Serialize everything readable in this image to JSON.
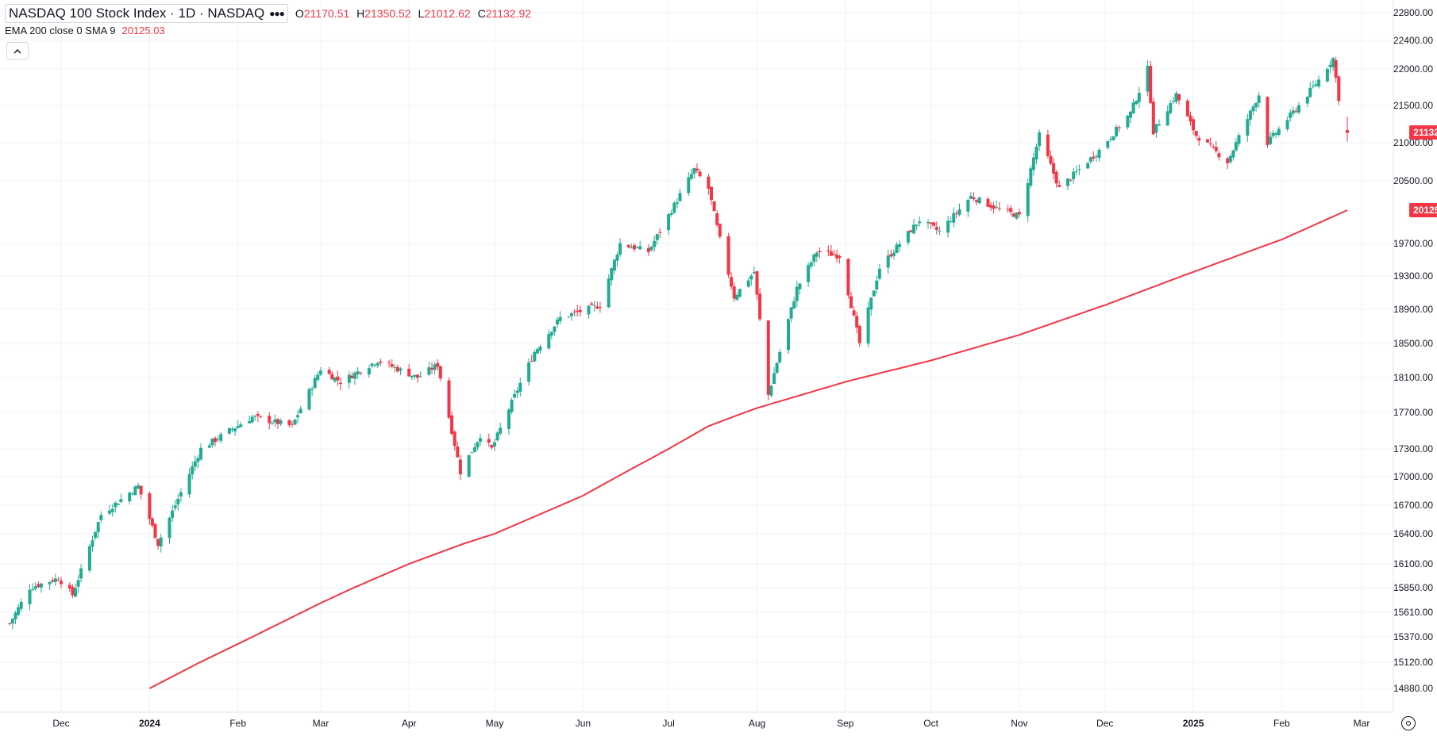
{
  "header": {
    "title": "NASDAQ 100 Stock Index · 1D · NASDAQ",
    "more_icon": "more-horizontal-icon",
    "ohlc": {
      "o_label": "O",
      "o_value": "21170.51",
      "h_label": "H",
      "h_value": "21350.52",
      "l_label": "L",
      "l_value": "21012.62",
      "c_label": "C",
      "c_value": "21132.92"
    },
    "indicator": {
      "name": "EMA 200 close 0 SMA 9",
      "value": "20125.03"
    },
    "collapse_icon": "chevron-up-icon"
  },
  "footer": {
    "settings_icon": "settings-icon"
  },
  "colors": {
    "up": "#22ab94",
    "down": "#f23645",
    "ema": "#f23645",
    "grid": "#f0f3fa",
    "axis_text": "#131722"
  },
  "chart_data": {
    "type": "candlestick",
    "symbol": "NASDAQ 100 Stock Index",
    "interval": "1D",
    "exchange": "NASDAQ",
    "price_axis_ticks": [
      22800,
      22400,
      22000,
      21500,
      21000,
      20500,
      19700,
      19300,
      18900,
      18500,
      18100,
      17700,
      17300,
      17000,
      16700,
      16400,
      16100,
      15850,
      15610,
      15370,
      15120,
      14880
    ],
    "price_axis_labels": [
      "22800.00",
      "22400.00",
      "22000.00",
      "21500.00",
      "21000.00",
      "20500.00",
      "19700.00",
      "19300.00",
      "18900.00",
      "18500.00",
      "18100.00",
      "17700.00",
      "17300.00",
      "17000.00",
      "16700.00",
      "16400.00",
      "16100.00",
      "15850.00",
      "15610.00",
      "15370.00",
      "15120.00",
      "14880.00"
    ],
    "time_axis": [
      {
        "date": "2023-12-01",
        "label": "Dec"
      },
      {
        "date": "2024-01-01",
        "label": "2024"
      },
      {
        "date": "2024-02-01",
        "label": "Feb"
      },
      {
        "date": "2024-03-01",
        "label": "Mar"
      },
      {
        "date": "2024-04-01",
        "label": "Apr"
      },
      {
        "date": "2024-05-01",
        "label": "May"
      },
      {
        "date": "2024-06-01",
        "label": "Jun"
      },
      {
        "date": "2024-07-01",
        "label": "Jul"
      },
      {
        "date": "2024-08-01",
        "label": "Aug"
      },
      {
        "date": "2024-09-01",
        "label": "Sep"
      },
      {
        "date": "2024-10-01",
        "label": "Oct"
      },
      {
        "date": "2024-11-01",
        "label": "Nov"
      },
      {
        "date": "2024-12-01",
        "label": "Dec"
      },
      {
        "date": "2025-01-01",
        "label": "2025"
      },
      {
        "date": "2025-02-01",
        "label": "Feb"
      },
      {
        "date": "2025-03-01",
        "label": "Mar"
      }
    ],
    "last_price": "21132.92",
    "ema_last": "20125.03",
    "close_anchors": [
      [
        "2023-11-13",
        15500
      ],
      [
        "2023-11-20",
        15850
      ],
      [
        "2023-11-30",
        15950
      ],
      [
        "2023-12-05",
        15780
      ],
      [
        "2023-12-15",
        16600
      ],
      [
        "2023-12-28",
        16900
      ],
      [
        "2024-01-04",
        16300
      ],
      [
        "2024-01-10",
        16700
      ],
      [
        "2024-01-19",
        17300
      ],
      [
        "2024-01-29",
        17500
      ],
      [
        "2024-02-06",
        17650
      ],
      [
        "2024-02-20",
        17550
      ],
      [
        "2024-03-01",
        18200
      ],
      [
        "2024-03-08",
        18050
      ],
      [
        "2024-03-21",
        18300
      ],
      [
        "2024-04-04",
        18100
      ],
      [
        "2024-04-11",
        18250
      ],
      [
        "2024-04-19",
        17050
      ],
      [
        "2024-04-26",
        17450
      ],
      [
        "2024-04-30",
        17300
      ],
      [
        "2024-05-15",
        18400
      ],
      [
        "2024-05-24",
        18800
      ],
      [
        "2024-06-07",
        18950
      ],
      [
        "2024-06-14",
        19700
      ],
      [
        "2024-06-24",
        19600
      ],
      [
        "2024-07-10",
        20650
      ],
      [
        "2024-07-15",
        20400
      ],
      [
        "2024-07-19",
        19750
      ],
      [
        "2024-07-24",
        19050
      ],
      [
        "2024-07-31",
        19350
      ],
      [
        "2024-08-05",
        17900
      ],
      [
        "2024-08-15",
        19150
      ],
      [
        "2024-08-22",
        19600
      ],
      [
        "2024-08-30",
        19550
      ],
      [
        "2024-09-06",
        18500
      ],
      [
        "2024-09-13",
        19400
      ],
      [
        "2024-09-27",
        20000
      ],
      [
        "2024-10-04",
        19850
      ],
      [
        "2024-10-15",
        20300
      ],
      [
        "2024-10-24",
        20150
      ],
      [
        "2024-11-01",
        20050
      ],
      [
        "2024-11-08",
        21100
      ],
      [
        "2024-11-15",
        20400
      ],
      [
        "2024-11-29",
        20900
      ],
      [
        "2024-12-10",
        21400
      ],
      [
        "2024-12-16",
        22000
      ],
      [
        "2024-12-18",
        21150
      ],
      [
        "2024-12-26",
        21650
      ],
      [
        "2025-01-02",
        21100
      ],
      [
        "2025-01-13",
        20750
      ],
      [
        "2025-01-24",
        21650
      ],
      [
        "2025-01-27",
        21000
      ],
      [
        "2025-02-07",
        21500
      ],
      [
        "2025-02-14",
        21850
      ],
      [
        "2025-02-19",
        22150
      ],
      [
        "2025-02-21",
        21600
      ],
      [
        "2025-02-24",
        21132.92
      ]
    ],
    "ema_anchors": [
      [
        "2024-01-01",
        14880
      ],
      [
        "2024-02-01",
        15300
      ],
      [
        "2024-03-01",
        15700
      ],
      [
        "2024-04-01",
        16100
      ],
      [
        "2024-04-20",
        16300
      ],
      [
        "2024-05-01",
        16400
      ],
      [
        "2024-06-01",
        16800
      ],
      [
        "2024-07-01",
        17300
      ],
      [
        "2024-07-15",
        17550
      ],
      [
        "2024-08-01",
        17750
      ],
      [
        "2024-09-01",
        18050
      ],
      [
        "2024-10-01",
        18300
      ],
      [
        "2024-11-01",
        18600
      ],
      [
        "2024-12-01",
        18950
      ],
      [
        "2025-01-01",
        19350
      ],
      [
        "2025-02-01",
        19750
      ],
      [
        "2025-02-24",
        20125.03
      ]
    ]
  }
}
